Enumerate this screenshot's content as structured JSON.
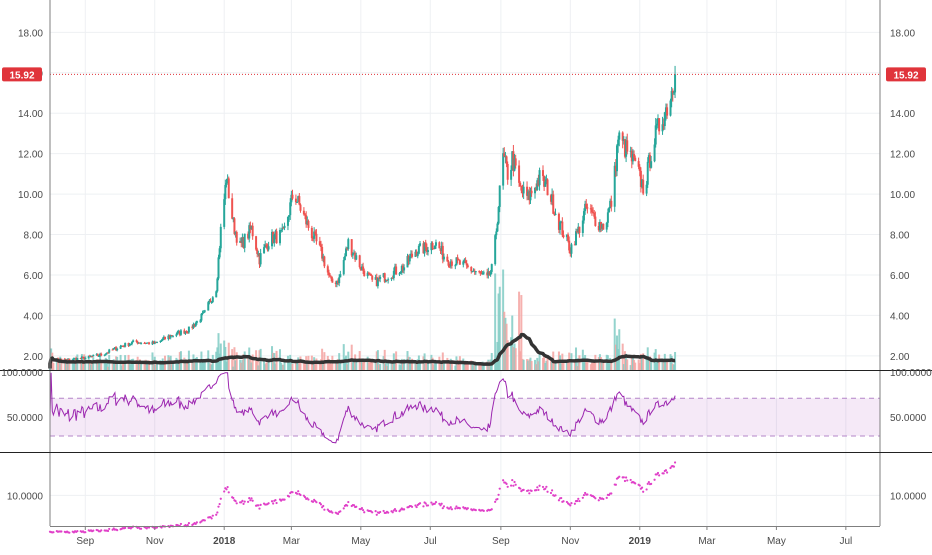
{
  "chart_data": [
    {
      "type": "candlestick",
      "panel": "price",
      "ylim": [
        1.3,
        19.6
      ],
      "yticks": [
        "2.00",
        "4.00",
        "6.00",
        "8.00",
        "10.00",
        "12.00",
        "14.00",
        "16.00",
        "18.00"
      ],
      "last_price_label": "15.92",
      "last_price": 15.92,
      "colors": {
        "up": "#26a69a",
        "down": "#ef5350",
        "last_line": "#e0343b",
        "volume_ma": "#333333"
      },
      "grid": true,
      "close_anchors": [
        [
          "2017-08-01",
          1.85
        ],
        [
          "2017-08-15",
          1.8
        ],
        [
          "2017-09-01",
          1.9
        ],
        [
          "2017-09-15",
          2.05
        ],
        [
          "2017-10-01",
          2.45
        ],
        [
          "2017-10-15",
          2.7
        ],
        [
          "2017-11-01",
          2.6
        ],
        [
          "2017-11-15",
          3.0
        ],
        [
          "2017-12-01",
          3.3
        ],
        [
          "2017-12-15",
          4.1
        ],
        [
          "2017-12-25",
          5.4
        ],
        [
          "2017-12-29",
          8.2
        ],
        [
          "2018-01-03",
          10.8
        ],
        [
          "2018-01-09",
          8.5
        ],
        [
          "2018-01-15",
          7.4
        ],
        [
          "2018-01-25",
          8.3
        ],
        [
          "2018-02-01",
          6.8
        ],
        [
          "2018-02-10",
          7.8
        ],
        [
          "2018-02-22",
          8.0
        ],
        [
          "2018-03-03",
          10.1
        ],
        [
          "2018-03-15",
          8.5
        ],
        [
          "2018-03-28",
          7.0
        ],
        [
          "2018-04-05",
          5.6
        ],
        [
          "2018-04-12",
          5.8
        ],
        [
          "2018-04-20",
          7.6
        ],
        [
          "2018-05-01",
          6.4
        ],
        [
          "2018-05-12",
          5.6
        ],
        [
          "2018-05-25",
          6.0
        ],
        [
          "2018-06-08",
          6.4
        ],
        [
          "2018-06-18",
          7.2
        ],
        [
          "2018-06-25",
          7.3
        ],
        [
          "2018-07-05",
          7.6
        ],
        [
          "2018-07-15",
          6.8
        ],
        [
          "2018-07-25",
          6.6
        ],
        [
          "2018-08-05",
          6.3
        ],
        [
          "2018-08-15",
          6.0
        ],
        [
          "2018-08-20",
          5.8
        ],
        [
          "2018-08-25",
          6.4
        ],
        [
          "2018-08-30",
          9.5
        ],
        [
          "2018-09-03",
          11.8
        ],
        [
          "2018-09-08",
          10.8
        ],
        [
          "2018-09-11",
          11.8
        ],
        [
          "2018-09-18",
          10.2
        ],
        [
          "2018-09-25",
          9.8
        ],
        [
          "2018-10-05",
          10.8
        ],
        [
          "2018-10-12",
          10.3
        ],
        [
          "2018-10-22",
          8.6
        ],
        [
          "2018-11-01",
          7.3
        ],
        [
          "2018-11-08",
          8.2
        ],
        [
          "2018-11-15",
          9.3
        ],
        [
          "2018-11-25",
          8.6
        ],
        [
          "2018-12-01",
          8.4
        ],
        [
          "2018-12-08",
          9.8
        ],
        [
          "2018-12-13",
          12.8
        ],
        [
          "2018-12-20",
          12.2
        ],
        [
          "2018-12-28",
          11.4
        ],
        [
          "2019-01-05",
          10.2
        ],
        [
          "2019-01-12",
          12.4
        ],
        [
          "2019-01-20",
          13.7
        ],
        [
          "2019-01-27",
          14.6
        ],
        [
          "2019-02-01",
          15.92
        ]
      ]
    },
    {
      "type": "bar",
      "panel": "volume",
      "overlay": "volume moving average"
    },
    {
      "type": "line",
      "panel": "rsi",
      "ylim": [
        13,
        100
      ],
      "yticks": [
        "50.0000"
      ],
      "top_label": "100.0000",
      "band": [
        30,
        70
      ],
      "colors": {
        "line": "#9c27b0",
        "band": "#9c27b0"
      }
    },
    {
      "type": "scatter",
      "panel": "indicator",
      "ylim": [
        3.5,
        19.2
      ],
      "yticks": [
        "10.0000"
      ],
      "colors": {
        "dots": "#e040c8"
      }
    }
  ],
  "x_axis": {
    "start": "2017-08-01",
    "end": "2019-07-31",
    "labels": [
      {
        "text": "Sep",
        "date": "2017-09-01",
        "bold": false
      },
      {
        "text": "Nov",
        "date": "2017-11-01",
        "bold": false
      },
      {
        "text": "2018",
        "date": "2018-01-01",
        "bold": true
      },
      {
        "text": "Mar",
        "date": "2018-03-01",
        "bold": false
      },
      {
        "text": "May",
        "date": "2018-05-01",
        "bold": false
      },
      {
        "text": "Jul",
        "date": "2018-07-01",
        "bold": false
      },
      {
        "text": "Sep",
        "date": "2018-09-01",
        "bold": false
      },
      {
        "text": "Nov",
        "date": "2018-11-01",
        "bold": false
      },
      {
        "text": "2019",
        "date": "2019-01-01",
        "bold": true
      },
      {
        "text": "Mar",
        "date": "2019-03-01",
        "bold": false
      },
      {
        "text": "May",
        "date": "2019-05-01",
        "bold": false
      },
      {
        "text": "Jul",
        "date": "2019-07-01",
        "bold": false
      }
    ]
  }
}
